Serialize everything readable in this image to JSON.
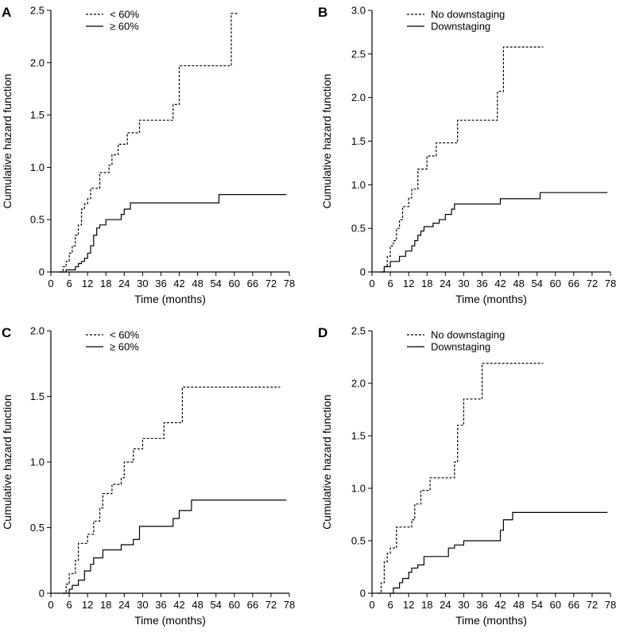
{
  "chart_data": [
    {
      "type": "line",
      "panel_label": "A",
      "title": "",
      "xlabel": "Time (months)",
      "ylabel": "Cumulative hazard function",
      "xlim": [
        0,
        78
      ],
      "ylim": [
        0,
        2.5
      ],
      "x_ticks": [
        0,
        6,
        12,
        18,
        24,
        30,
        36,
        42,
        48,
        54,
        60,
        66,
        72,
        78
      ],
      "y_ticks": [
        0,
        0.5,
        1.0,
        1.5,
        2.0,
        2.5
      ],
      "y_tick_labels": [
        "0",
        "0.5",
        "1.0",
        "1.5",
        "2.0",
        "2.5"
      ],
      "grid": false,
      "legend_position": "top-center",
      "series": [
        {
          "name": "< 60%",
          "style": "dashed",
          "step_points": [
            [
              3,
              0
            ],
            [
              4,
              0.05
            ],
            [
              5,
              0.1
            ],
            [
              6,
              0.18
            ],
            [
              7,
              0.25
            ],
            [
              8,
              0.35
            ],
            [
              9,
              0.45
            ],
            [
              10,
              0.6
            ],
            [
              11,
              0.65
            ],
            [
              12,
              0.7
            ],
            [
              13,
              0.8
            ],
            [
              16,
              0.95
            ],
            [
              19,
              1.02
            ],
            [
              20,
              1.12
            ],
            [
              22,
              1.22
            ],
            [
              25,
              1.33
            ],
            [
              29,
              1.45
            ],
            [
              40,
              1.6
            ],
            [
              42,
              1.97
            ],
            [
              59,
              2.47
            ],
            [
              61,
              2.47
            ]
          ]
        },
        {
          "name": "≥ 60%",
          "style": "solid",
          "step_points": [
            [
              3,
              0
            ],
            [
              5,
              0.02
            ],
            [
              8,
              0.05
            ],
            [
              9,
              0.08
            ],
            [
              10,
              0.1
            ],
            [
              11,
              0.13
            ],
            [
              12,
              0.18
            ],
            [
              13,
              0.25
            ],
            [
              14,
              0.35
            ],
            [
              15,
              0.42
            ],
            [
              16,
              0.45
            ],
            [
              18,
              0.5
            ],
            [
              23,
              0.55
            ],
            [
              24,
              0.6
            ],
            [
              26,
              0.66
            ],
            [
              55,
              0.74
            ],
            [
              77,
              0.74
            ]
          ]
        }
      ]
    },
    {
      "type": "line",
      "panel_label": "B",
      "title": "",
      "xlabel": "Time (months)",
      "ylabel": "Cumulative hazard function",
      "xlim": [
        0,
        78
      ],
      "ylim": [
        0,
        3.0
      ],
      "x_ticks": [
        0,
        6,
        12,
        18,
        24,
        30,
        36,
        42,
        48,
        54,
        60,
        66,
        72,
        78
      ],
      "y_ticks": [
        0,
        0.5,
        1.0,
        1.5,
        2.0,
        2.5,
        3.0
      ],
      "y_tick_labels": [
        "0",
        "0.5",
        "1.0",
        "1.5",
        "2.0",
        "2.5",
        "3.0"
      ],
      "grid": false,
      "legend_position": "top-center",
      "series": [
        {
          "name": "No downstaging",
          "style": "dashed",
          "step_points": [
            [
              3,
              0
            ],
            [
              4,
              0.06
            ],
            [
              5,
              0.18
            ],
            [
              6,
              0.3
            ],
            [
              7,
              0.36
            ],
            [
              8,
              0.5
            ],
            [
              9,
              0.6
            ],
            [
              10,
              0.75
            ],
            [
              12,
              0.85
            ],
            [
              13,
              0.95
            ],
            [
              15,
              1.18
            ],
            [
              18,
              1.33
            ],
            [
              21,
              1.48
            ],
            [
              28,
              1.74
            ],
            [
              41,
              2.07
            ],
            [
              43,
              2.58
            ],
            [
              56,
              2.58
            ]
          ]
        },
        {
          "name": "Downstaging",
          "style": "solid",
          "step_points": [
            [
              3,
              0
            ],
            [
              4,
              0.06
            ],
            [
              6,
              0.12
            ],
            [
              9,
              0.18
            ],
            [
              11,
              0.24
            ],
            [
              13,
              0.3
            ],
            [
              14,
              0.36
            ],
            [
              15,
              0.42
            ],
            [
              16,
              0.47
            ],
            [
              17,
              0.52
            ],
            [
              20,
              0.56
            ],
            [
              22,
              0.6
            ],
            [
              24,
              0.66
            ],
            [
              26,
              0.72
            ],
            [
              27,
              0.78
            ],
            [
              42,
              0.84
            ],
            [
              55,
              0.91
            ],
            [
              77,
              0.91
            ]
          ]
        }
      ]
    },
    {
      "type": "line",
      "panel_label": "C",
      "title": "",
      "xlabel": "Time (months)",
      "ylabel": "Cumulative hazard function",
      "xlim": [
        0,
        78
      ],
      "ylim": [
        0,
        2.0
      ],
      "x_ticks": [
        0,
        6,
        12,
        18,
        24,
        30,
        36,
        42,
        48,
        54,
        60,
        66,
        72,
        78
      ],
      "y_ticks": [
        0,
        0.5,
        1.0,
        1.5,
        2.0
      ],
      "y_tick_labels": [
        "0",
        "0.5",
        "1.0",
        "1.5",
        "2.0"
      ],
      "grid": false,
      "legend_position": "top-center",
      "series": [
        {
          "name": "< 60%",
          "style": "dashed",
          "step_points": [
            [
              4,
              0
            ],
            [
              5,
              0.07
            ],
            [
              6,
              0.15
            ],
            [
              8,
              0.25
            ],
            [
              9,
              0.38
            ],
            [
              12,
              0.45
            ],
            [
              14,
              0.55
            ],
            [
              16,
              0.65
            ],
            [
              17,
              0.76
            ],
            [
              20,
              0.83
            ],
            [
              23,
              0.88
            ],
            [
              24,
              1.0
            ],
            [
              27,
              1.1
            ],
            [
              30,
              1.18
            ],
            [
              37,
              1.3
            ],
            [
              43,
              1.57
            ],
            [
              75,
              1.57
            ]
          ]
        },
        {
          "name": "≥ 60%",
          "style": "solid",
          "step_points": [
            [
              4,
              0
            ],
            [
              6,
              0.03
            ],
            [
              7,
              0.06
            ],
            [
              9,
              0.1
            ],
            [
              11,
              0.17
            ],
            [
              13,
              0.22
            ],
            [
              14,
              0.27
            ],
            [
              17,
              0.33
            ],
            [
              23,
              0.37
            ],
            [
              27,
              0.41
            ],
            [
              29,
              0.51
            ],
            [
              40,
              0.57
            ],
            [
              42,
              0.63
            ],
            [
              46,
              0.71
            ],
            [
              77,
              0.71
            ]
          ]
        }
      ]
    },
    {
      "type": "line",
      "panel_label": "D",
      "title": "",
      "xlabel": "Time (months)",
      "ylabel": "Cumulative hazard function",
      "xlim": [
        0,
        78
      ],
      "ylim": [
        0,
        2.5
      ],
      "x_ticks": [
        0,
        6,
        12,
        18,
        24,
        30,
        36,
        42,
        48,
        54,
        60,
        66,
        72,
        78
      ],
      "y_ticks": [
        0,
        0.5,
        1.0,
        1.5,
        2.0,
        2.5
      ],
      "y_tick_labels": [
        "0",
        "0.5",
        "1.0",
        "1.5",
        "2.0",
        "2.5"
      ],
      "grid": false,
      "legend_position": "top-center",
      "series": [
        {
          "name": "No downstaging",
          "style": "dashed",
          "step_points": [
            [
              2,
              0
            ],
            [
              3,
              0.1
            ],
            [
              4,
              0.3
            ],
            [
              5,
              0.38
            ],
            [
              6,
              0.43
            ],
            [
              8,
              0.63
            ],
            [
              13,
              0.7
            ],
            [
              14,
              0.85
            ],
            [
              16,
              0.98
            ],
            [
              19,
              1.1
            ],
            [
              27,
              1.25
            ],
            [
              28,
              1.6
            ],
            [
              30,
              1.85
            ],
            [
              36,
              2.19
            ],
            [
              56,
              2.19
            ]
          ]
        },
        {
          "name": "Downstaging",
          "style": "solid",
          "step_points": [
            [
              6,
              0
            ],
            [
              7,
              0.05
            ],
            [
              9,
              0.1
            ],
            [
              10,
              0.14
            ],
            [
              12,
              0.2
            ],
            [
              13,
              0.24
            ],
            [
              15,
              0.27
            ],
            [
              17,
              0.35
            ],
            [
              25,
              0.43
            ],
            [
              27,
              0.46
            ],
            [
              30,
              0.5
            ],
            [
              42,
              0.6
            ],
            [
              43,
              0.7
            ],
            [
              46,
              0.77
            ],
            [
              77,
              0.77
            ]
          ]
        }
      ]
    }
  ]
}
